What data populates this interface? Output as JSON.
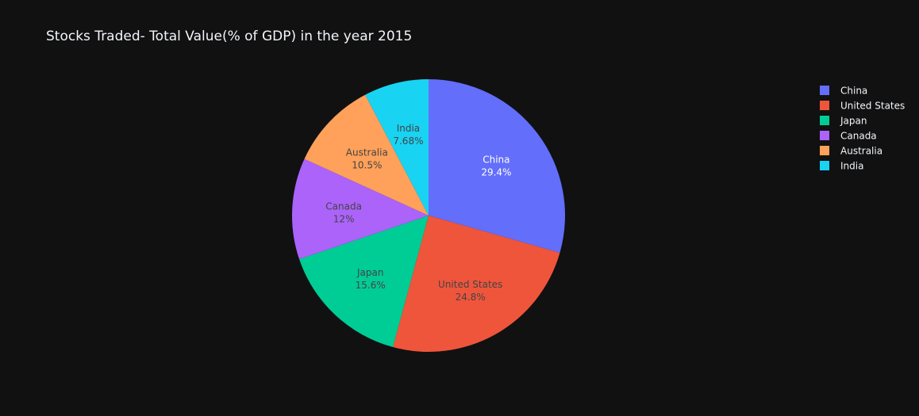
{
  "chart_data": {
    "type": "pie",
    "title": "Stocks Traded- Total Value(% of GDP) in the year 2015",
    "categories": [
      "China",
      "United States",
      "Japan",
      "Canada",
      "Australia",
      "India"
    ],
    "percent_labels": [
      "29.4%",
      "24.8%",
      "15.6%",
      "12%",
      "10.5%",
      "7.68%"
    ],
    "values": [
      29.4,
      24.8,
      15.6,
      12.0,
      10.5,
      7.68
    ],
    "colors": [
      "#636efa",
      "#ef553b",
      "#00cc96",
      "#ab63fa",
      "#ffa15a",
      "#19d3f3"
    ],
    "label_colors": [
      "#ffffff",
      "#444444",
      "#444444",
      "#444444",
      "#444444",
      "#444444"
    ],
    "direction": "clockwise",
    "start": "12 o'clock",
    "legend": {
      "position": "top-right",
      "entries": [
        "China",
        "United States",
        "Japan",
        "Canada",
        "Australia",
        "India"
      ]
    }
  }
}
